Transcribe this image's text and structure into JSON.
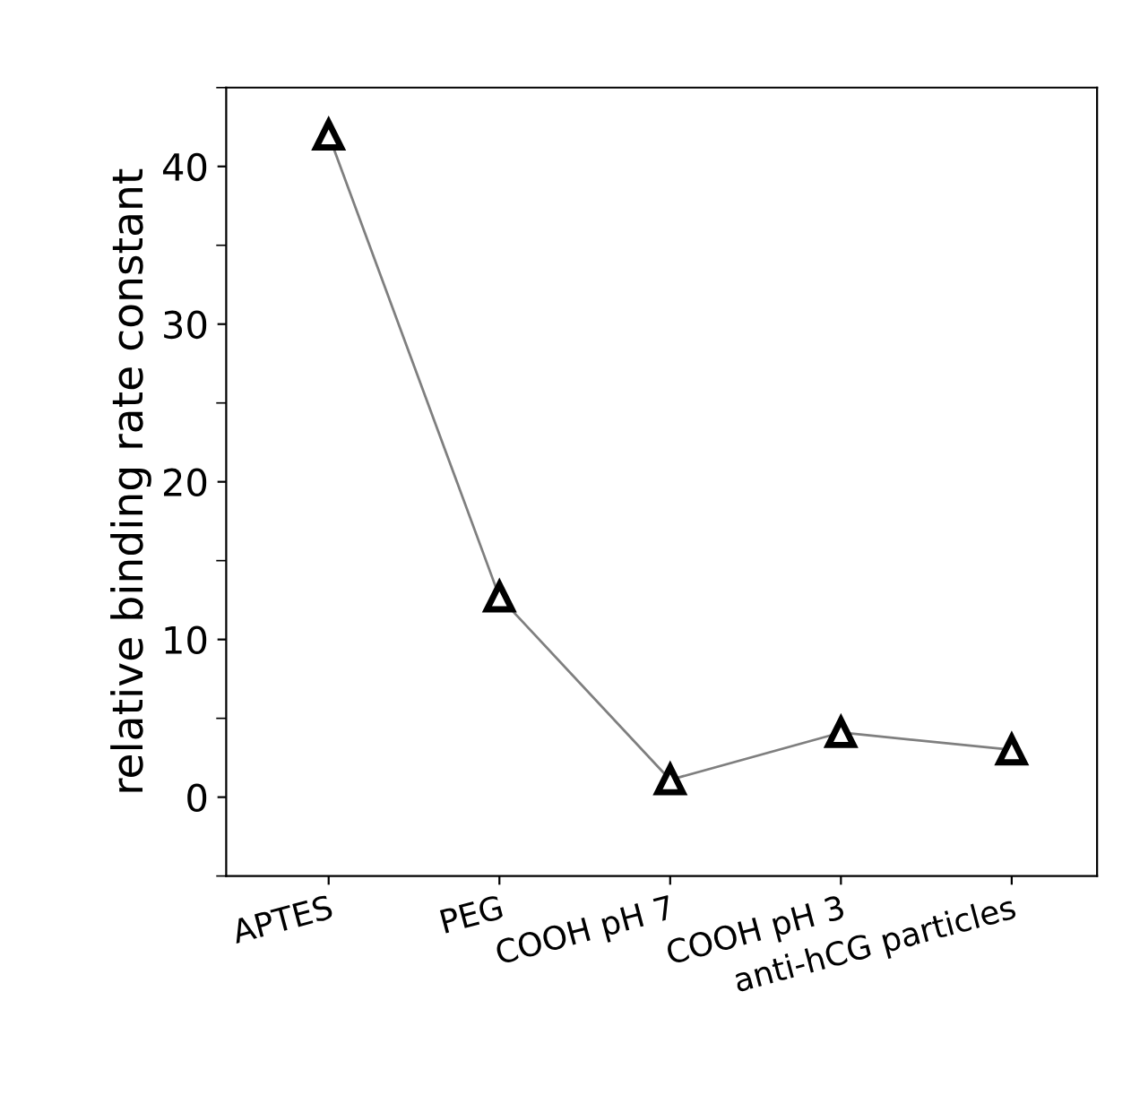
{
  "chart_data": {
    "type": "line",
    "ylabel": "relative binding rate constant",
    "categories": [
      "APTES",
      "PEG",
      "COOH pH 7",
      "COOH pH 3",
      "anti-hCG particles"
    ],
    "series": [
      {
        "color": "#000000",
        "values": [
          42.0,
          12.7,
          1.1,
          4.1,
          3.0
        ]
      }
    ],
    "ylim": [
      -5,
      45
    ],
    "yticks": [
      0,
      10,
      20,
      30,
      40
    ],
    "grid": false,
    "marker": "triangle",
    "line_style": "solid"
  }
}
